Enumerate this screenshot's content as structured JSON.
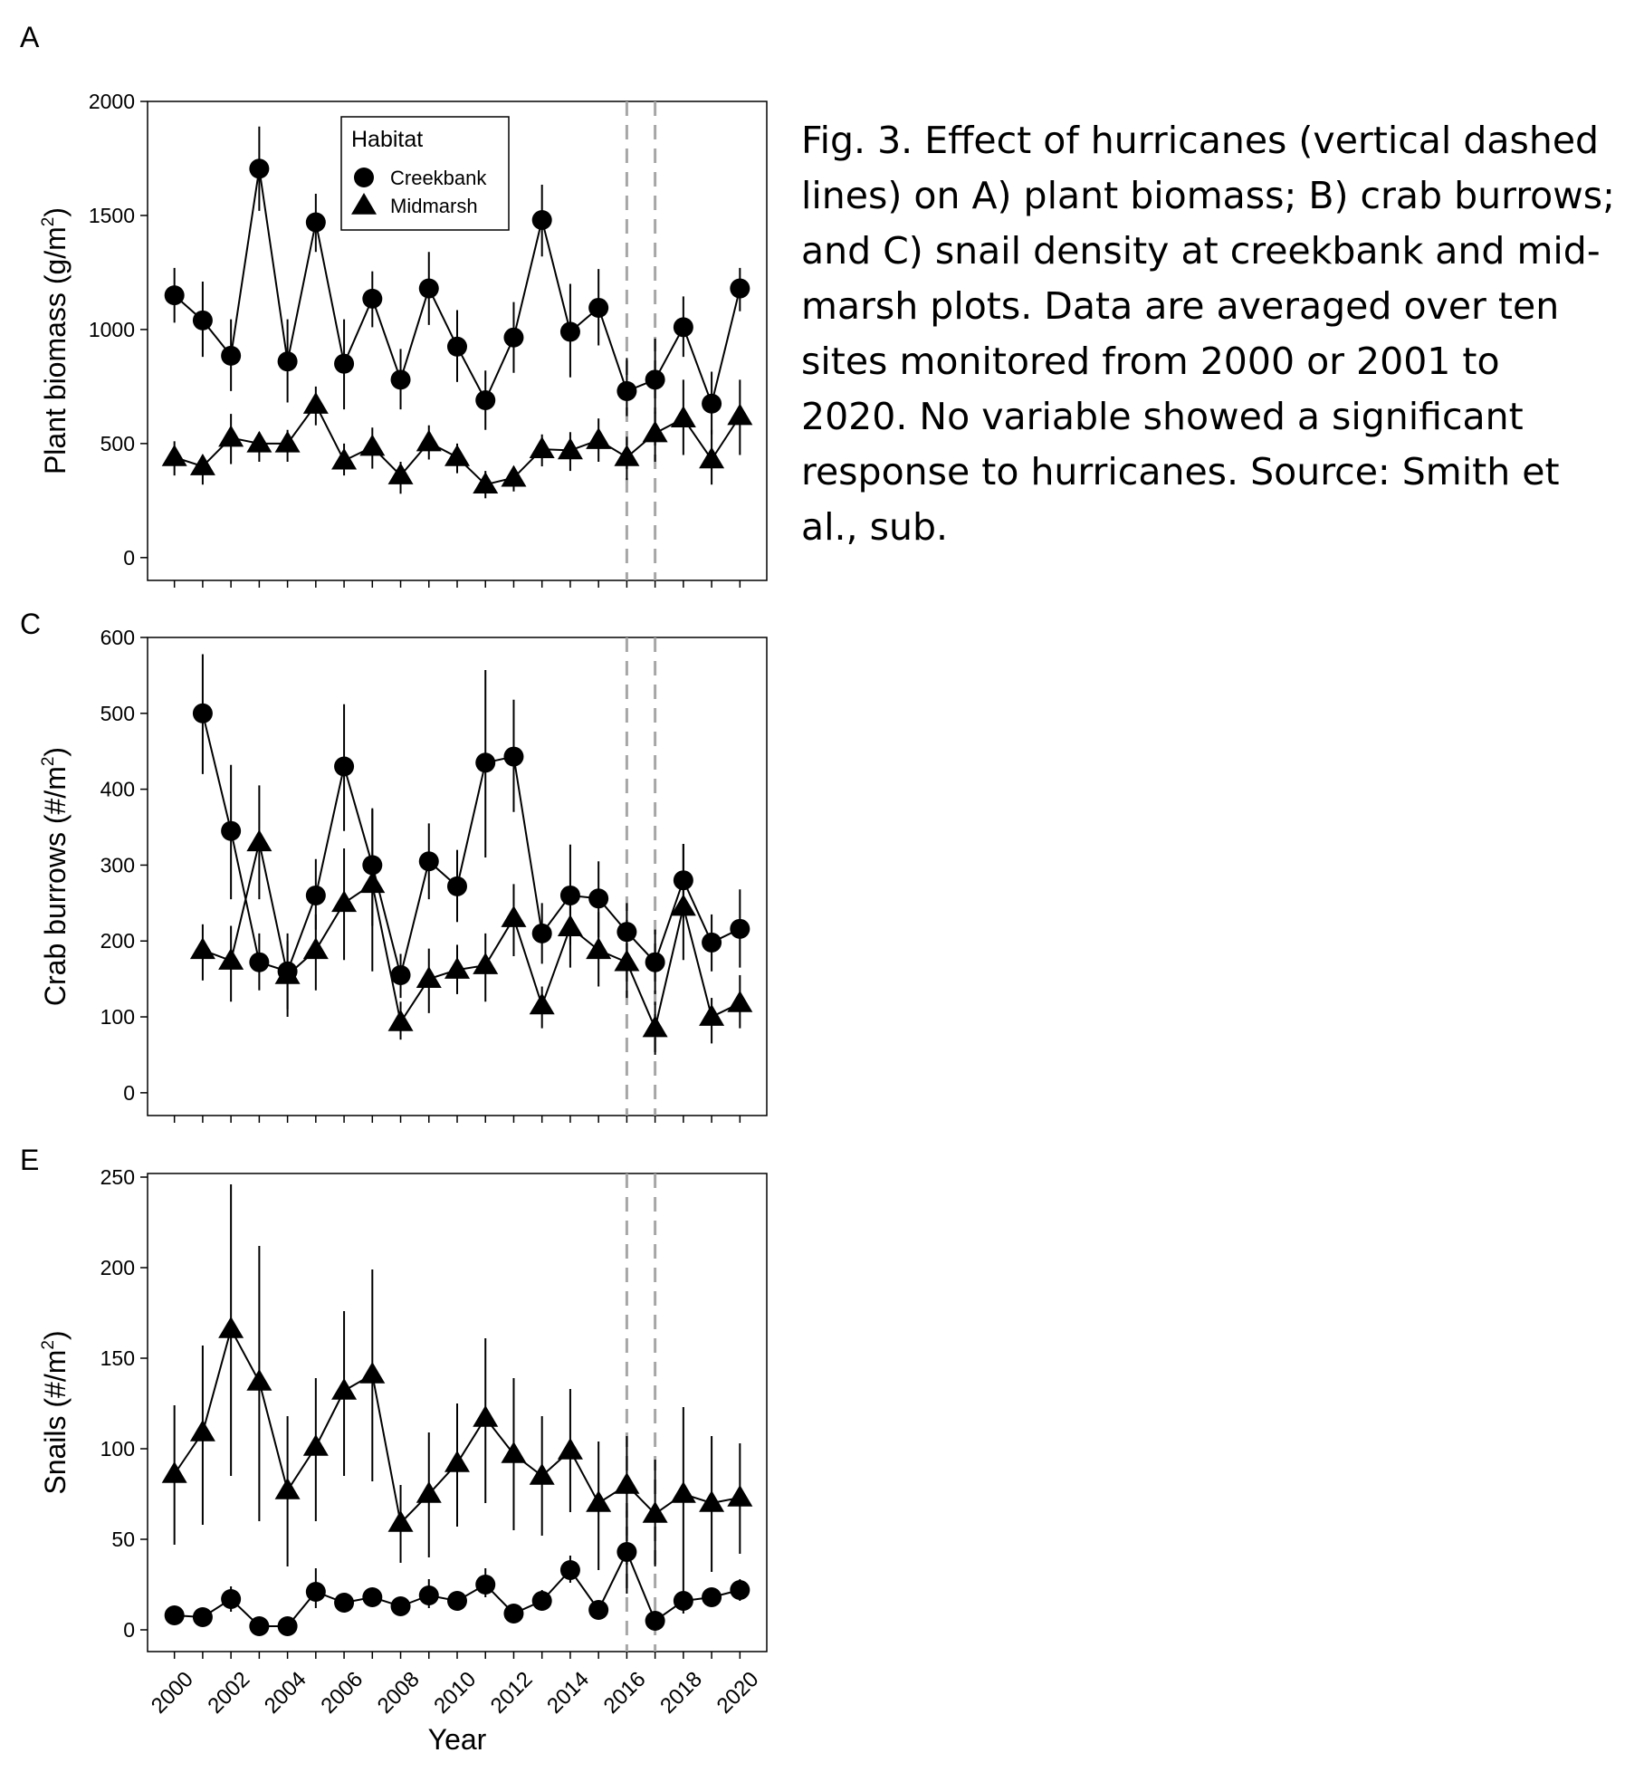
{
  "caption": "Fig. 3. Effect of hurricanes (vertical dashed lines) on A) plant biomass; B) crab burrows; and C) snail density at creekbank and mid-marsh plots. Data are averaged over ten sites monitored from 2000 or 2001 to 2020. No variable showed a significant response to hurricanes.  Source: Smith et al., sub.",
  "legend": {
    "title": "Habitat",
    "items": [
      {
        "label": "Creekbank",
        "marker": "circle"
      },
      {
        "label": "Midmarsh",
        "marker": "triangle"
      }
    ]
  },
  "hurricane_years": [
    2016,
    2017
  ],
  "xaxis": {
    "label": "Year",
    "range": [
      1999.05,
      2020.95
    ],
    "ticks": [
      2000,
      2001,
      2002,
      2003,
      2004,
      2005,
      2006,
      2007,
      2008,
      2009,
      2010,
      2011,
      2012,
      2013,
      2014,
      2015,
      2016,
      2017,
      2018,
      2019,
      2020
    ],
    "tick_labels": [
      "2000",
      "2002",
      "2004",
      "2006",
      "2008",
      "2010",
      "2012",
      "2014",
      "2016",
      "2018",
      "2020"
    ],
    "tick_label_years": [
      2000,
      2002,
      2004,
      2006,
      2008,
      2010,
      2012,
      2014,
      2016,
      2018,
      2020
    ]
  },
  "colors": {
    "marker": "#000000",
    "line": "#000000",
    "hurricane": "#a6a6a6",
    "frame": "#000000"
  },
  "chart_data": [
    {
      "type": "line",
      "panel_letter": "A",
      "ylabel": "Plant biomass (g/m",
      "ylabel_sup": "2",
      "ylabel_end": ")",
      "ylim": [
        -100,
        2000
      ],
      "yticks": [
        0,
        500,
        1000,
        1500,
        2000
      ],
      "show_legend": true,
      "series": [
        {
          "name": "Creekbank",
          "marker": "circle",
          "x": [
            2000,
            2001,
            2002,
            2003,
            2004,
            2005,
            2006,
            2007,
            2008,
            2009,
            2010,
            2011,
            2012,
            2013,
            2014,
            2015,
            2016,
            2017,
            2018,
            2019,
            2020
          ],
          "values": [
            1150,
            1040,
            885,
            1705,
            860,
            1470,
            850,
            1135,
            780,
            1180,
            925,
            690,
            965,
            1480,
            990,
            1095,
            730,
            780,
            1010,
            675,
            1180
          ],
          "err_low": [
            1030,
            880,
            730,
            1520,
            680,
            1340,
            650,
            1010,
            650,
            1020,
            770,
            560,
            810,
            1320,
            790,
            930,
            620,
            630,
            880,
            540,
            1080
          ],
          "err_high": [
            1270,
            1210,
            1045,
            1890,
            1045,
            1595,
            1045,
            1255,
            915,
            1340,
            1085,
            820,
            1120,
            1635,
            1200,
            1265,
            875,
            960,
            1145,
            815,
            1270
          ]
        },
        {
          "name": "Midmarsh",
          "marker": "triangle",
          "x": [
            2000,
            2001,
            2002,
            2003,
            2004,
            2005,
            2006,
            2007,
            2008,
            2009,
            2010,
            2011,
            2012,
            2013,
            2014,
            2015,
            2016,
            2017,
            2018,
            2019,
            2020
          ],
          "values": [
            440,
            400,
            525,
            500,
            500,
            670,
            425,
            485,
            360,
            505,
            440,
            320,
            350,
            475,
            470,
            515,
            440,
            545,
            610,
            430,
            620
          ],
          "err_low": [
            360,
            320,
            410,
            420,
            420,
            580,
            360,
            390,
            280,
            430,
            370,
            260,
            290,
            400,
            380,
            420,
            340,
            420,
            450,
            320,
            450
          ],
          "err_high": [
            510,
            450,
            630,
            550,
            560,
            750,
            500,
            570,
            420,
            580,
            500,
            380,
            400,
            540,
            550,
            610,
            530,
            640,
            780,
            560,
            780
          ]
        }
      ]
    },
    {
      "type": "line",
      "panel_letter": "C",
      "ylabel": "Crab burrows (#/m",
      "ylabel_sup": "2",
      "ylabel_end": ")",
      "ylim": [
        -30,
        600
      ],
      "yticks": [
        0,
        100,
        200,
        300,
        400,
        500,
        600
      ],
      "show_legend": false,
      "series": [
        {
          "name": "Creekbank",
          "marker": "circle",
          "x": [
            2001,
            2002,
            2003,
            2004,
            2005,
            2006,
            2007,
            2008,
            2009,
            2010,
            2011,
            2012,
            2013,
            2014,
            2015,
            2016,
            2017,
            2018,
            2019,
            2020
          ],
          "values": [
            500,
            345,
            172,
            160,
            260,
            430,
            300,
            155,
            305,
            272,
            435,
            443,
            210,
            260,
            256,
            212,
            172,
            280,
            198,
            216
          ],
          "err_low": [
            420,
            255,
            135,
            110,
            215,
            345,
            220,
            125,
            255,
            225,
            310,
            370,
            170,
            195,
            205,
            170,
            130,
            230,
            160,
            165
          ],
          "err_high": [
            578,
            432,
            210,
            210,
            308,
            512,
            373,
            183,
            355,
            320,
            557,
            518,
            250,
            327,
            305,
            250,
            215,
            328,
            235,
            268
          ]
        },
        {
          "name": "Midmarsh",
          "marker": "triangle",
          "x": [
            2001,
            2002,
            2003,
            2004,
            2005,
            2006,
            2007,
            2008,
            2009,
            2010,
            2011,
            2012,
            2013,
            2014,
            2015,
            2016,
            2017,
            2018,
            2019,
            2020
          ],
          "values": [
            188,
            174,
            330,
            155,
            188,
            250,
            275,
            93,
            150,
            162,
            168,
            230,
            115,
            218,
            188,
            172,
            85,
            245,
            100,
            118
          ],
          "err_low": [
            148,
            120,
            255,
            100,
            135,
            175,
            160,
            70,
            105,
            130,
            120,
            180,
            85,
            165,
            140,
            125,
            50,
            175,
            65,
            85
          ],
          "err_high": [
            222,
            220,
            405,
            200,
            235,
            322,
            375,
            120,
            190,
            195,
            210,
            275,
            140,
            262,
            238,
            220,
            120,
            328,
            125,
            155
          ]
        }
      ]
    },
    {
      "type": "line",
      "panel_letter": "E",
      "ylabel": "Snails (#/m",
      "ylabel_sup": "2",
      "ylabel_end": ")",
      "ylim": [
        -12,
        252
      ],
      "yticks": [
        0,
        50,
        100,
        150,
        200,
        250
      ],
      "show_legend": false,
      "series": [
        {
          "name": "Creekbank",
          "marker": "circle",
          "x": [
            2000,
            2001,
            2002,
            2003,
            2004,
            2005,
            2006,
            2007,
            2008,
            2009,
            2010,
            2011,
            2012,
            2013,
            2014,
            2015,
            2016,
            2017,
            2018,
            2019,
            2020
          ],
          "values": [
            8,
            7,
            17,
            2,
            2,
            21,
            15,
            18,
            13,
            19,
            16,
            25,
            9,
            16,
            33,
            11,
            43,
            5,
            16,
            18,
            22
          ],
          "err_low": [
            5,
            4,
            10,
            0,
            0,
            12,
            11,
            14,
            9,
            12,
            12,
            18,
            6,
            11,
            26,
            7,
            20,
            2,
            9,
            14,
            16
          ],
          "err_high": [
            11,
            10,
            24,
            4,
            4,
            34,
            20,
            23,
            17,
            28,
            21,
            34,
            13,
            22,
            41,
            15,
            66,
            9,
            25,
            23,
            28
          ]
        },
        {
          "name": "Midmarsh",
          "marker": "triangle",
          "x": [
            2000,
            2001,
            2002,
            2003,
            2004,
            2005,
            2006,
            2007,
            2008,
            2009,
            2010,
            2011,
            2012,
            2013,
            2014,
            2015,
            2016,
            2017,
            2018,
            2019,
            2020
          ],
          "values": [
            86,
            109,
            166,
            137,
            77,
            101,
            132,
            141,
            59,
            75,
            92,
            117,
            97,
            85,
            99,
            70,
            80,
            64,
            75,
            70,
            73
          ],
          "err_low": [
            47,
            58,
            85,
            60,
            35,
            60,
            85,
            82,
            37,
            40,
            57,
            70,
            55,
            52,
            65,
            33,
            52,
            35,
            25,
            32,
            42
          ],
          "err_high": [
            124,
            157,
            246,
            212,
            118,
            139,
            176,
            199,
            80,
            109,
            125,
            161,
            139,
            118,
            133,
            104,
            107,
            94,
            123,
            107,
            103
          ]
        }
      ]
    }
  ]
}
